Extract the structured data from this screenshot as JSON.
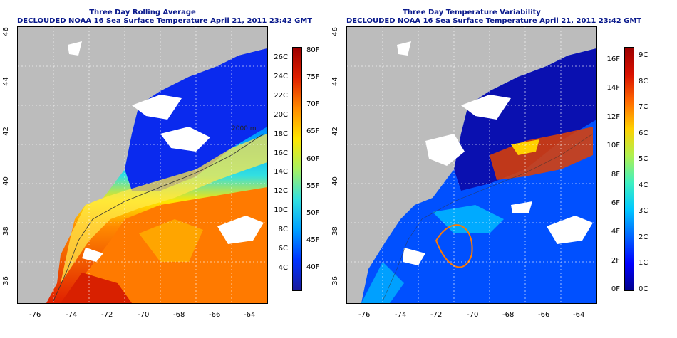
{
  "panels": [
    {
      "id": "average",
      "title_line1": "Three Day Rolling Average",
      "title_line2": "DECLOUDED NOAA 16 Sea Surface Temperature April 21, 2011 23:42 GMT",
      "contour_label": "2000 m",
      "colorbar_left_labels": [
        "4C",
        "6C",
        "8C",
        "10C",
        "12C",
        "14C",
        "16C",
        "18C",
        "20C",
        "22C",
        "24C",
        "26C"
      ],
      "colorbar_right_labels": [
        "40F",
        "45F",
        "50F",
        "55F",
        "60F",
        "65F",
        "70F",
        "75F",
        "80F"
      ],
      "colors": [
        "#1a1a9c",
        "#0033ff",
        "#00a0ff",
        "#33e0e0",
        "#a8f060",
        "#ffe600",
        "#ff8a00",
        "#e02000",
        "#9c0000"
      ]
    },
    {
      "id": "variability",
      "title_line1": "Three Day Temperature Variability",
      "title_line2": "DECLOUDED NOAA 16 Sea Surface Temperature April 21, 2011 23:42 GMT",
      "colorbar_left_labels": [
        "0F",
        "2F",
        "4F",
        "6F",
        "8F",
        "10F",
        "12F",
        "14F",
        "16F"
      ],
      "colorbar_right_labels": [
        "0C",
        "1C",
        "2C",
        "3C",
        "4C",
        "5C",
        "6C",
        "7C",
        "8C",
        "9C"
      ],
      "colors": [
        "#00008c",
        "#0000ff",
        "#0064ff",
        "#00c8ff",
        "#40f0c0",
        "#b0f050",
        "#ffd000",
        "#ff6a00",
        "#d81000",
        "#9c0000"
      ]
    }
  ],
  "x_ticks": [
    "-76",
    "-74",
    "-72",
    "-70",
    "-68",
    "-66",
    "-64"
  ],
  "y_ticks": [
    "36",
    "38",
    "40",
    "42",
    "44",
    "46"
  ],
  "map_colors": {
    "land": "#bcbcbc",
    "cloud": "#ffffff",
    "grid": "#ffffff"
  }
}
